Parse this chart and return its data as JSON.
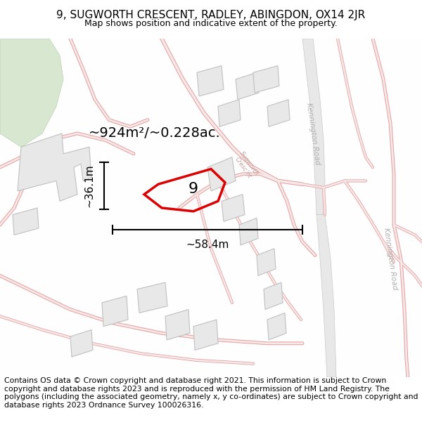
{
  "title_line1": "9, SUGWORTH CRESCENT, RADLEY, ABINGDON, OX14 2JR",
  "title_line2": "Map shows position and indicative extent of the property.",
  "footer_text": "Contains OS data © Crown copyright and database right 2021. This information is subject to Crown copyright and database rights 2023 and is reproduced with the permission of HM Land Registry. The polygons (including the associated geometry, namely x, y co-ordinates) are subject to Crown copyright and database rights 2023 Ordnance Survey 100026316.",
  "area_label": "~924m²/~0.228ac.",
  "width_label": "~58.4m",
  "height_label": "~36.1m",
  "property_number": "9",
  "bg_color": "#ffffff",
  "map_bg": "#fafafa",
  "road_line_color": "#e8a0a0",
  "road_fill_color": "#f5e8e8",
  "building_fill": "#e8e8e8",
  "building_stroke": "#c0c0c0",
  "big_road_fill": "#e0e0e0",
  "big_road_stroke": "#c8c8c8",
  "property_stroke": "#dd0000",
  "green_fill": "#d8e8d0",
  "title_fontsize": 11,
  "footer_fontsize": 7.8,
  "road_label_color": "#c0a0a0",
  "kennington_label_color": "#b0b0b0"
}
